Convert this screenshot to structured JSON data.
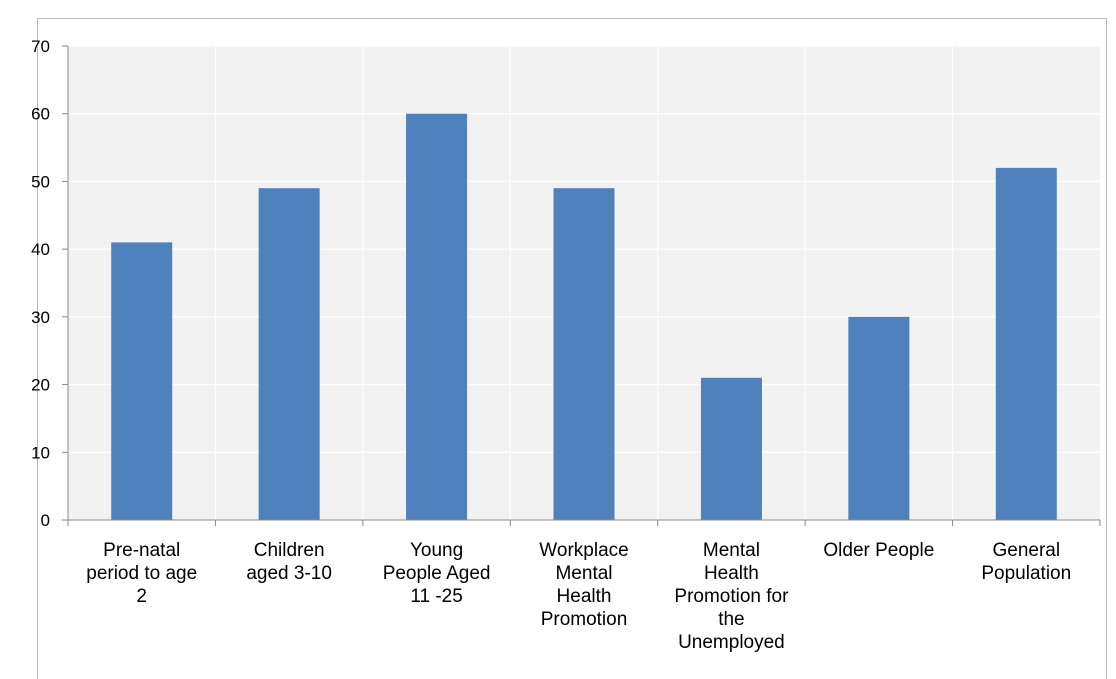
{
  "chart_data": {
    "type": "bar",
    "categories": [
      [
        "Pre-natal",
        "period to age",
        "2"
      ],
      [
        "Children",
        "aged 3-10"
      ],
      [
        "Young",
        "People Aged",
        "11 -25"
      ],
      [
        "Workplace",
        "Mental",
        "Health",
        "Promotion"
      ],
      [
        "Mental",
        "Health",
        "Promotion for",
        "the",
        "Unemployed"
      ],
      [
        "Older People"
      ],
      [
        "General",
        "Population"
      ]
    ],
    "values": [
      41,
      49,
      60,
      49,
      21,
      30,
      52
    ],
    "ylim": [
      0,
      70
    ],
    "yticks": [
      "0",
      "10",
      "20",
      "30",
      "40",
      "50",
      "60",
      "70"
    ],
    "grid": true,
    "title": "",
    "xlabel": "",
    "ylabel": "",
    "colors": {
      "bar": "#4f81bd",
      "plot_bg": "#f2f2f2",
      "grid": "#ffffff",
      "axis": "#898989"
    }
  }
}
